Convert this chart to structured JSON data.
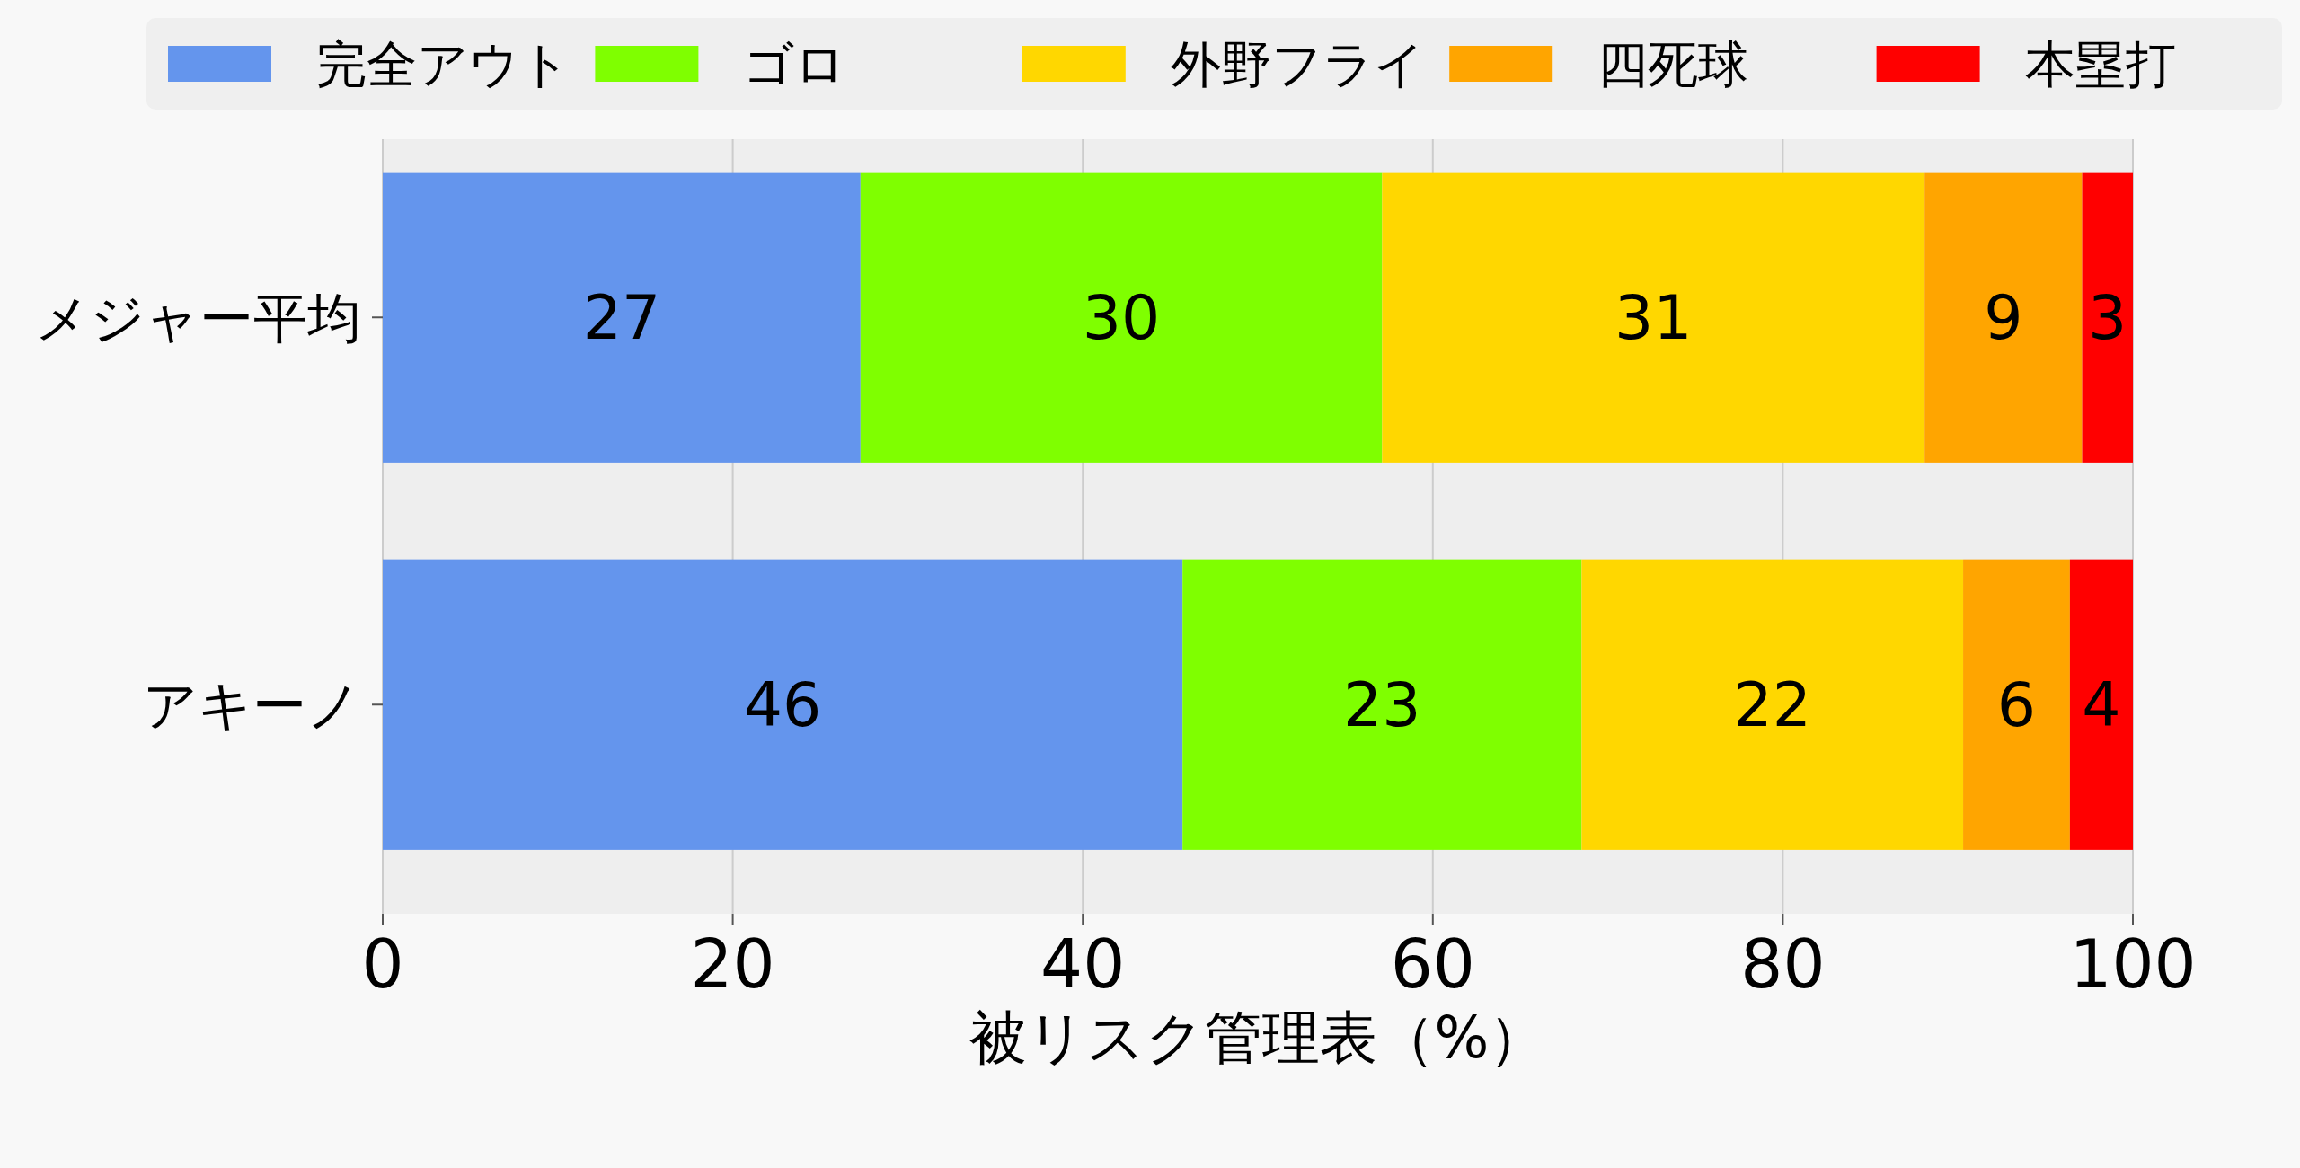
{
  "chart_data": {
    "type": "bar",
    "orientation": "horizontal",
    "stacked": true,
    "categories": [
      "メジャー平均",
      "アキーノ"
    ],
    "series": [
      {
        "name": "完全アウト",
        "color": "#6495ed",
        "values": [
          27.3,
          45.7
        ],
        "value_labels": [
          "27",
          "46"
        ]
      },
      {
        "name": "ゴロ",
        "color": "#7fff00",
        "values": [
          29.8,
          22.8
        ],
        "value_labels": [
          "30",
          "23"
        ]
      },
      {
        "name": "外野フライ",
        "color": "#ffd700",
        "values": [
          31.0,
          21.8
        ],
        "value_labels": [
          "31",
          "22"
        ]
      },
      {
        "name": "四死球",
        "color": "#ffa500",
        "values": [
          9.0,
          6.1
        ],
        "value_labels": [
          "9",
          "6"
        ]
      },
      {
        "name": "本塁打",
        "color": "#ff0000",
        "values": [
          2.9,
          3.6
        ],
        "value_labels": [
          "3",
          "4"
        ]
      }
    ],
    "xlabel": "被リスク管理表（%）",
    "xlim": [
      0,
      100
    ],
    "xticks": [
      0,
      20,
      40,
      60,
      80,
      100
    ],
    "grid": "x",
    "legend": "top"
  }
}
